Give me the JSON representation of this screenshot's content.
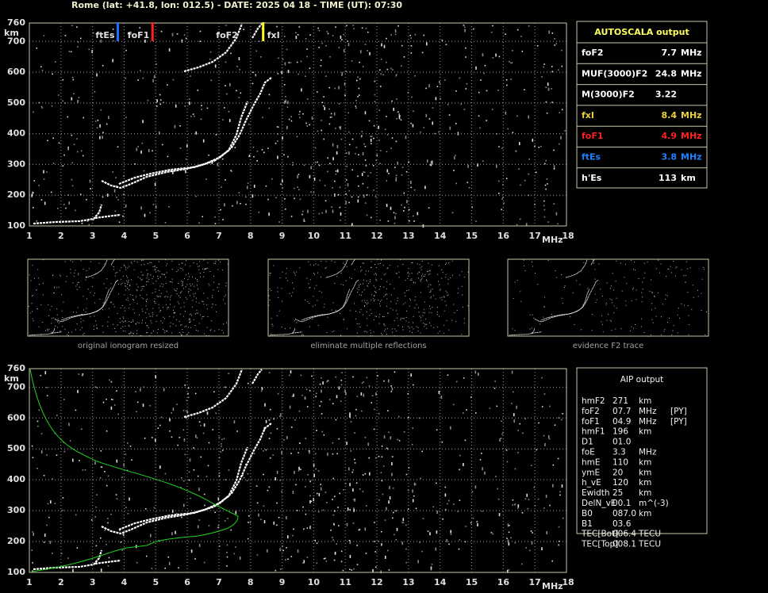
{
  "header": "Rome (lat: +41.8, lon: 012.5) - DATE: 2025 04 18 - TIME (UT): 07:30",
  "axes": {
    "y_unit": "km",
    "x_unit": "MHz",
    "y_labels": [
      "760",
      "700",
      "600",
      "500",
      "400",
      "300",
      "200",
      "100"
    ],
    "x_labels": [
      "1",
      "2",
      "3",
      "4",
      "5",
      "6",
      "7",
      "8",
      "9",
      "10",
      "11",
      "12",
      "13",
      "14",
      "15",
      "16",
      "17",
      "18"
    ]
  },
  "markers": [
    {
      "label": "ftEs",
      "row": 5
    },
    {
      "label": "foF1",
      "row": 4
    },
    {
      "label": "foF2",
      "row": 0
    },
    {
      "label": "fxI",
      "row": 3
    }
  ],
  "autoscala": {
    "title": "AUTOSCALA output",
    "rows": [
      {
        "name": "foF2",
        "value": "7.7",
        "unit": "MHz"
      },
      {
        "name": "MUF(3000)F2",
        "value": "24.8",
        "unit": "MHz"
      },
      {
        "name": "M(3000)F2",
        "value": "3.22",
        "unit": ""
      },
      {
        "name": "fxI",
        "value": "8.4",
        "unit": "MHz"
      },
      {
        "name": "foF1",
        "value": "4.9",
        "unit": "MHz"
      },
      {
        "name": "ftEs",
        "value": "3.8",
        "unit": "MHz"
      },
      {
        "name": "h'Es",
        "value": "113",
        "unit": "km"
      }
    ]
  },
  "thumbnails": [
    "original ionogram resized",
    "eliminate multiple reflections",
    "evidence F2 trace"
  ],
  "aip": {
    "title": "AIP output",
    "rows": [
      [
        "hmF2",
        "271",
        "km"
      ],
      [
        "foF2",
        "07.7",
        "MHz",
        "[PY]"
      ],
      [
        "foF1",
        "04.9",
        "MHz",
        "[PY]"
      ],
      [
        "hmF1",
        "196",
        "km"
      ],
      [
        "D1",
        "01.0"
      ],
      [
        "foE",
        "3.3",
        "MHz"
      ],
      [
        "hmE",
        "110",
        "km"
      ],
      [
        "ymE",
        "20",
        "km"
      ],
      [
        "h_vE",
        "120",
        "km"
      ],
      [
        "Ewidth",
        "25",
        "km"
      ],
      [
        "DelN_vE",
        "00.1",
        "m^(-3)"
      ],
      [
        "B0",
        "087.0",
        "km"
      ],
      [
        "B1",
        "03.6"
      ],
      [
        "TEC[Bot]",
        "006.4",
        "TECU"
      ],
      [
        "TEC[Top]",
        "008.1",
        "TECU"
      ]
    ]
  }
}
